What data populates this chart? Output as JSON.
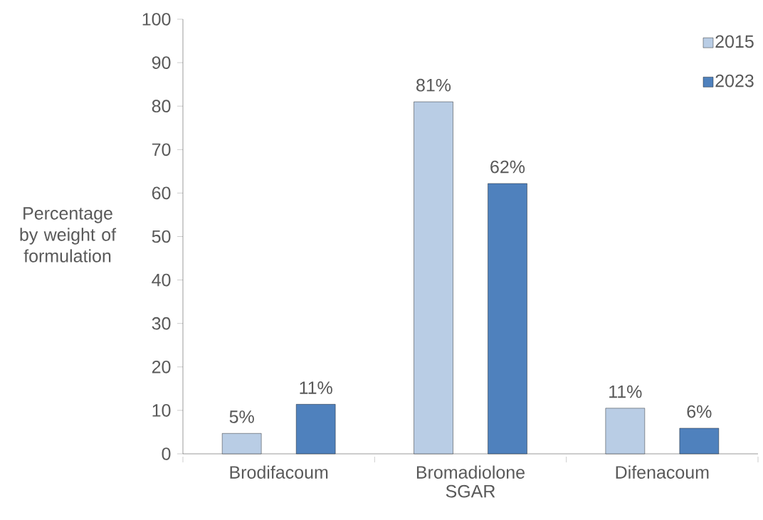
{
  "chart_data": {
    "type": "bar",
    "xlabel": "SGAR",
    "ylabel": "Percentage by weight of formulation",
    "categories": [
      "Brodifacoum",
      "Bromadiolone",
      "Difenacoum"
    ],
    "series": [
      {
        "name": "2015",
        "color": "#b9cde5",
        "values": [
          4.7,
          81,
          10.5
        ],
        "value_labels": [
          "5%",
          "81%",
          "11%"
        ]
      },
      {
        "name": "2023",
        "color": "#4f81bd",
        "values": [
          11.4,
          62.2,
          5.9
        ],
        "value_labels": [
          "11%",
          "62%",
          "6%"
        ]
      }
    ],
    "ylim": [
      0,
      100
    ],
    "yticks": [
      0,
      10,
      20,
      30,
      40,
      50,
      60,
      70,
      80,
      90,
      100
    ],
    "grid": false,
    "legend": "top right"
  }
}
